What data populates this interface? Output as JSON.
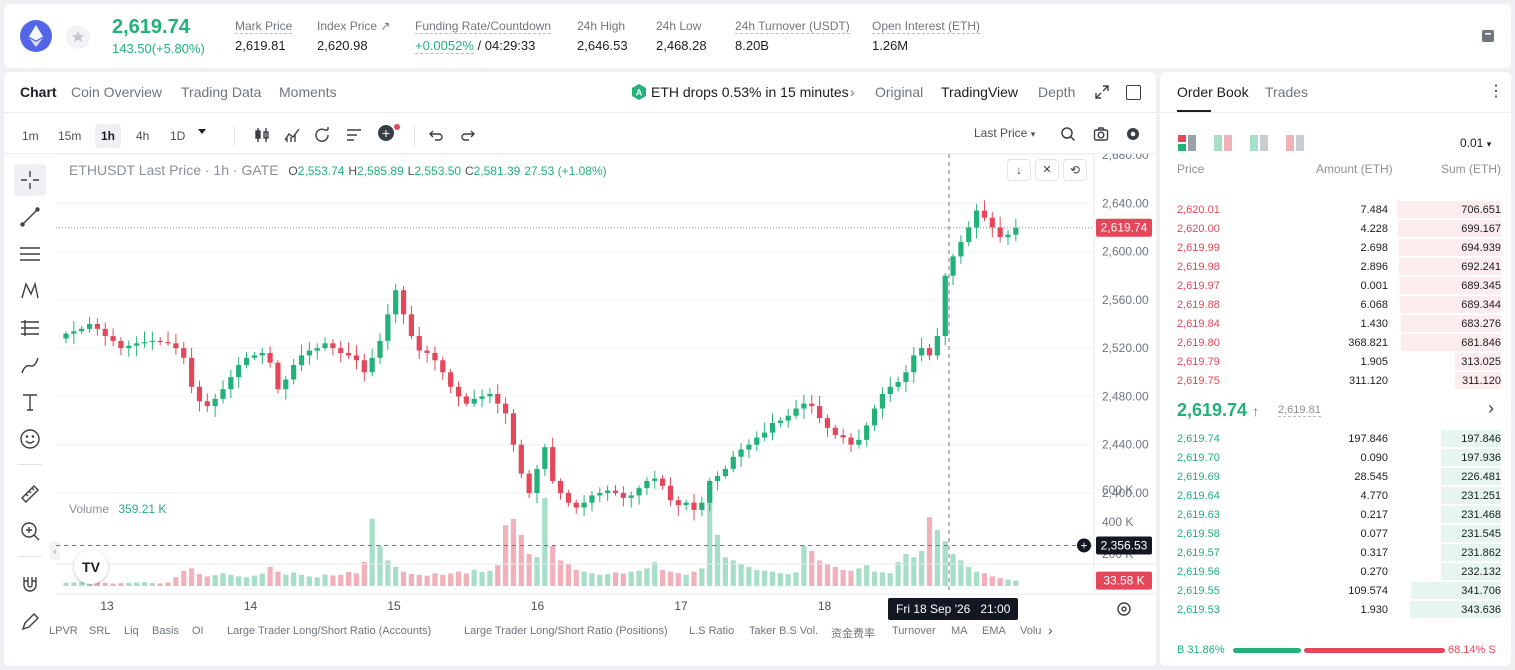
{
  "header": {
    "last_price": "2,619.74",
    "change": "143.50(+5.80%)",
    "stats": [
      {
        "label": "Mark Price",
        "value": "2,619.81"
      },
      {
        "label": "Index Price ↗",
        "value": "2,620.98"
      },
      {
        "label": "Funding Rate/Countdown",
        "value_rate": "+0.0052%",
        "value_count": "/ 04:29:33"
      },
      {
        "label": "24h High",
        "value": "2,646.53"
      },
      {
        "label": "24h Low",
        "value": "2,468.28"
      },
      {
        "label": "24h Turnover (USDT)",
        "value": "8.20B"
      },
      {
        "label": "Open Interest (ETH)",
        "value": "1.26M"
      }
    ]
  },
  "chart_tabs": [
    "Chart",
    "Coin Overview",
    "Trading Data",
    "Moments"
  ],
  "alert_text": "ETH drops 0.53% in 15 minutes",
  "view_tabs": [
    "Original",
    "TradingView",
    "Depth"
  ],
  "timeframes": [
    "1m",
    "15m",
    "1h",
    "4h",
    "1D"
  ],
  "price_type": "Last Price",
  "legend": {
    "symbol": "ETHUSDT Last Price · 1h · GATE",
    "o_label": "O",
    "o": "2,553.74",
    "h_label": "H",
    "h": "2,585.89",
    "l_label": "L",
    "l": "2,553.50",
    "c_label": "C",
    "c": "2,581.39",
    "chg": "27.53 (+1.08%)"
  },
  "volume_label": "Volume",
  "volume_value": "359.21 K",
  "crosshair_date": "Fri 18 Sep '26   21:00",
  "indicators": [
    "LPVR",
    "SRL",
    "Liq",
    "Basis",
    "OI",
    "Large Trader Long/Short Ratio (Accounts)",
    "Large Trader Long/Short Ratio (Positions)",
    "L.S Ratio",
    "Taker B.S Vol.",
    "资金费率",
    "Turnover",
    "MA",
    "EMA",
    "Volu"
  ],
  "chart_data": {
    "type": "candlestick",
    "yticks": [
      "2,680.00",
      "2,640.00",
      "2,600.00",
      "2,560.00",
      "2,520.00",
      "2,480.00",
      "2,440.00",
      "2,400.00"
    ],
    "ytick_values": [
      2680,
      2640,
      2600,
      2560,
      2520,
      2480,
      2440,
      2400
    ],
    "vol_ticks": [
      "600 K",
      "400 K",
      "200 K"
    ],
    "vol_tick_values": [
      600,
      400,
      200
    ],
    "xticks": [
      "13",
      "14",
      "15",
      "16",
      "17",
      "18"
    ],
    "current_price_tag": "2,619.74",
    "current_price": 2619.74,
    "crosshair_price_tag": "2,356.53",
    "crosshair_price": 2356.53,
    "vol_tag": "33.58 K",
    "vol_tag_value": 33.58,
    "closes": [
      2532,
      2534,
      2536,
      2540,
      2536,
      2530,
      2526,
      2520,
      2522,
      2524,
      2525,
      2526,
      2525,
      2524,
      2520,
      2512,
      2488,
      2476,
      2472,
      2478,
      2486,
      2496,
      2506,
      2512,
      2514,
      2516,
      2508,
      2486,
      2494,
      2506,
      2514,
      2518,
      2520,
      2524,
      2520,
      2516,
      2514,
      2510,
      2500,
      2512,
      2526,
      2548,
      2568,
      2548,
      2530,
      2518,
      2516,
      2510,
      2500,
      2488,
      2480,
      2474,
      2478,
      2480,
      2482,
      2474,
      2466,
      2440,
      2416,
      2400,
      2420,
      2438,
      2410,
      2400,
      2392,
      2388,
      2392,
      2398,
      2400,
      2402,
      2400,
      2396,
      2398,
      2404,
      2410,
      2412,
      2406,
      2394,
      2390,
      2392,
      2386,
      2392,
      2410,
      2414,
      2420,
      2430,
      2436,
      2440,
      2446,
      2450,
      2458,
      2460,
      2464,
      2470,
      2474,
      2472,
      2462,
      2454,
      2448,
      2446,
      2440,
      2444,
      2456,
      2470,
      2482,
      2488,
      2492,
      2500,
      2514,
      2520,
      2514,
      2530,
      2580,
      2596,
      2608,
      2620,
      2634,
      2628,
      2620,
      2612,
      2614,
      2619.74
    ],
    "volumes": [
      20,
      22,
      25,
      18,
      24,
      20,
      15,
      18,
      20,
      22,
      25,
      18,
      16,
      22,
      55,
      95,
      110,
      75,
      60,
      68,
      80,
      70,
      60,
      55,
      65,
      78,
      120,
      90,
      70,
      85,
      70,
      60,
      55,
      72,
      66,
      70,
      88,
      80,
      150,
      420,
      250,
      160,
      120,
      90,
      75,
      70,
      65,
      80,
      70,
      78,
      90,
      78,
      102,
      88,
      95,
      130,
      380,
      420,
      320,
      200,
      180,
      550,
      250,
      160,
      140,
      100,
      90,
      80,
      70,
      75,
      85,
      78,
      90,
      95,
      110,
      150,
      100,
      90,
      80,
      70,
      90,
      110,
      650,
      320,
      180,
      160,
      140,
      120,
      100,
      95,
      90,
      80,
      75,
      85,
      250,
      220,
      160,
      140,
      120,
      100,
      95,
      110,
      130,
      90,
      85,
      80,
      150,
      200,
      180,
      220,
      430,
      350,
      280,
      200,
      160,
      120,
      90,
      80,
      60,
      50,
      40,
      33.58
    ]
  },
  "orderbook": {
    "tabs": [
      "Order Book",
      "Trades"
    ],
    "precision": "0.01",
    "headers": [
      "Price",
      "Amount (ETH)",
      "Sum (ETH)"
    ],
    "asks": [
      {
        "price": "2,620.01",
        "amount": "7.484",
        "sum": "706.651",
        "depth": 0.98
      },
      {
        "price": "2,620.00",
        "amount": "4.228",
        "sum": "699.167",
        "depth": 0.97
      },
      {
        "price": "2,619.99",
        "amount": "2.698",
        "sum": "694.939",
        "depth": 0.96
      },
      {
        "price": "2,619.98",
        "amount": "2.896",
        "sum": "692.241",
        "depth": 0.96
      },
      {
        "price": "2,619.97",
        "amount": "0.001",
        "sum": "689.345",
        "depth": 0.95
      },
      {
        "price": "2,619.88",
        "amount": "6.068",
        "sum": "689.344",
        "depth": 0.95
      },
      {
        "price": "2,619.84",
        "amount": "1.430",
        "sum": "683.276",
        "depth": 0.94
      },
      {
        "price": "2,619.80",
        "amount": "368.821",
        "sum": "681.846",
        "depth": 0.94
      },
      {
        "price": "2,619.79",
        "amount": "1.905",
        "sum": "313.025",
        "depth": 0.43
      },
      {
        "price": "2,619.75",
        "amount": "311.120",
        "sum": "311.120",
        "depth": 0.43
      }
    ],
    "mid_price": "2,619.74",
    "mid_mark": "2,619.81",
    "bids": [
      {
        "price": "2,619.74",
        "amount": "197.846",
        "sum": "197.846",
        "depth": 0.57
      },
      {
        "price": "2,619.70",
        "amount": "0.090",
        "sum": "197.936",
        "depth": 0.57
      },
      {
        "price": "2,619.69",
        "amount": "28.545",
        "sum": "226.481",
        "depth": 0.57
      },
      {
        "price": "2,619.64",
        "amount": "4.770",
        "sum": "231.251",
        "depth": 0.57
      },
      {
        "price": "2,619.63",
        "amount": "0.217",
        "sum": "231.468",
        "depth": 0.57
      },
      {
        "price": "2,619.58",
        "amount": "0.077",
        "sum": "231.545",
        "depth": 0.57
      },
      {
        "price": "2,619.57",
        "amount": "0.317",
        "sum": "231.862",
        "depth": 0.57
      },
      {
        "price": "2,619.56",
        "amount": "0.270",
        "sum": "232.132",
        "depth": 0.57
      },
      {
        "price": "2,619.55",
        "amount": "109.574",
        "sum": "341.706",
        "depth": 0.85
      },
      {
        "price": "2,619.53",
        "amount": "1.930",
        "sum": "343.636",
        "depth": 0.86
      }
    ],
    "buy_ratio_label": "B 31.86%",
    "sell_ratio_label": "68.14% S",
    "buy_ratio": 0.3186
  },
  "colors": {
    "up": "#21b179",
    "down": "#e4475a",
    "up_vol": "#a6dfc7",
    "down_vol": "#f2b0ba"
  }
}
